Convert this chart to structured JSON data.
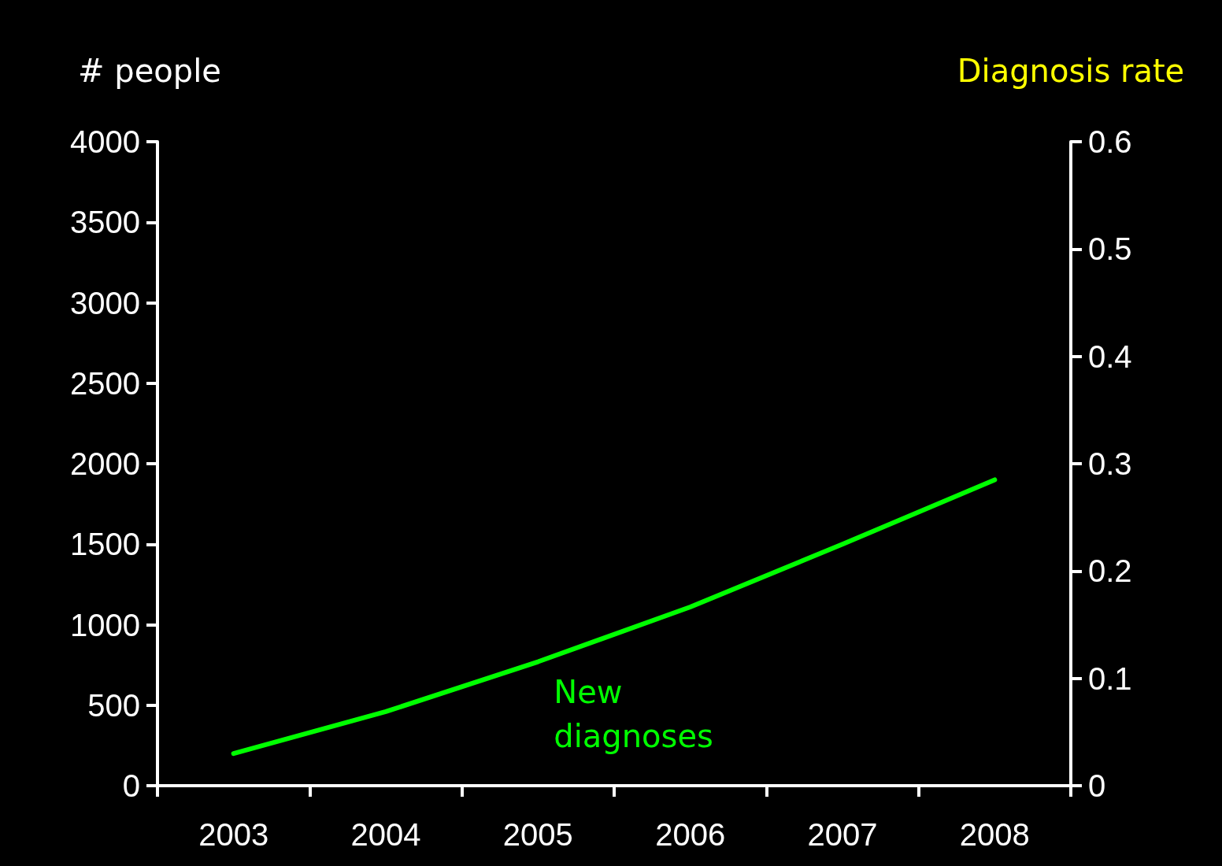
{
  "chart_data": {
    "type": "line",
    "categories": [
      "2003",
      "2004",
      "2005",
      "2006",
      "2007",
      "2008"
    ],
    "series": [
      {
        "name": "New diagnoses",
        "color": "#00ff00",
        "values": [
          200,
          460,
          770,
          1110,
          1500,
          1900
        ]
      }
    ],
    "ylabel": "# people",
    "y2label": "Diagnosis rate",
    "ylim": [
      0,
      4000
    ],
    "yticks": [
      0,
      500,
      1000,
      1500,
      2000,
      2500,
      3000,
      3500,
      4000
    ],
    "y2lim": [
      0,
      0.6
    ],
    "y2ticks": [
      0,
      0.1,
      0.2,
      0.3,
      0.4,
      0.5,
      0.6
    ],
    "grid": false,
    "legend": false,
    "marker": "none",
    "line_style": "solid"
  }
}
